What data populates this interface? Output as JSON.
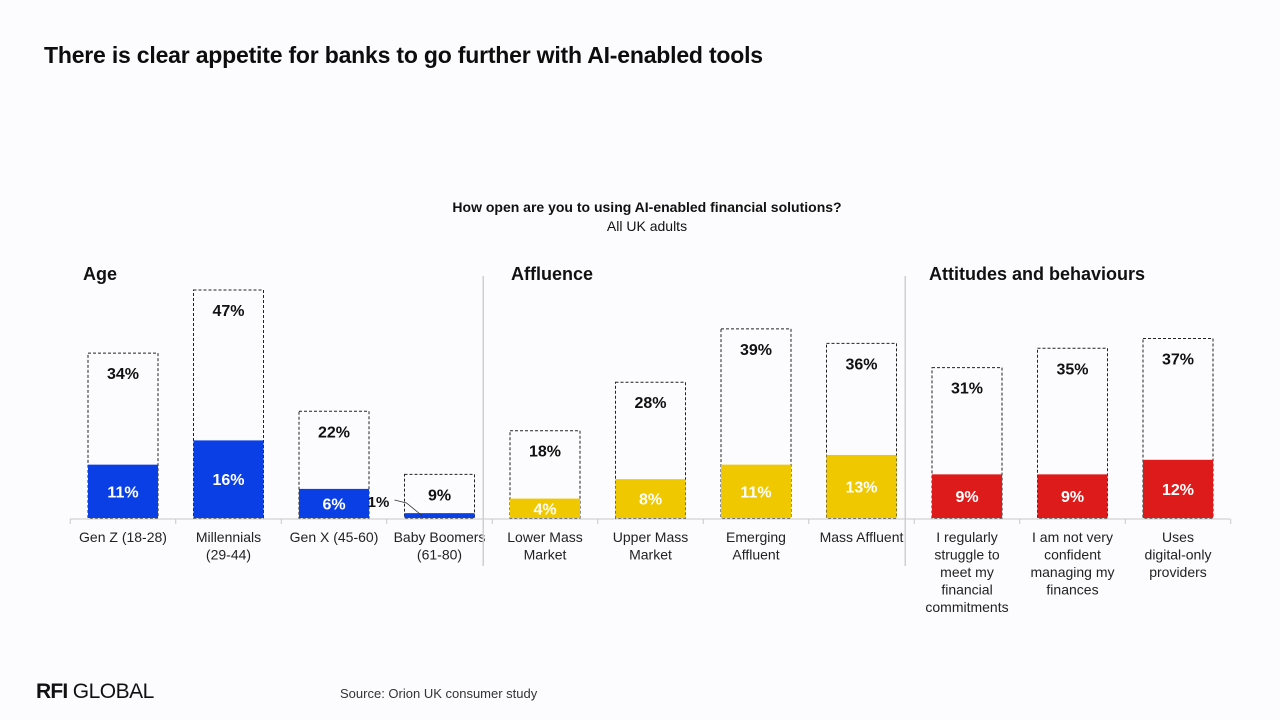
{
  "page": {
    "title": "There is clear appetite for banks to go further with AI-enabled tools",
    "source": "Source: Orion UK consumer study",
    "logo": {
      "strong": "RFI",
      "rest": " GLOBAL"
    }
  },
  "chart_data": {
    "type": "bar",
    "title": "How open are you to using AI-enabled financial solutions?",
    "subtitle": "All UK adults",
    "unit": "%",
    "groups": [
      {
        "name": "Age",
        "color": "#0a3fe6",
        "categories": [
          {
            "label": "Gen Z (18-28)",
            "outer": 34,
            "inner": 11
          },
          {
            "label": "Millennials (29-44)",
            "outer": 47,
            "inner": 16
          },
          {
            "label": "Gen X (45-60)",
            "outer": 22,
            "inner": 6
          },
          {
            "label": "Baby Boomers (61-80)",
            "outer": 9,
            "inner": 1
          }
        ]
      },
      {
        "name": "Affluence",
        "color": "#efc800",
        "categories": [
          {
            "label": "Lower Mass Market",
            "outer": 18,
            "inner": 4
          },
          {
            "label": "Upper Mass Market",
            "outer": 28,
            "inner": 8
          },
          {
            "label": "Emerging Affluent",
            "outer": 39,
            "inner": 11
          },
          {
            "label": "Mass Affluent",
            "outer": 36,
            "inner": 13
          }
        ]
      },
      {
        "name": "Attitudes and behaviours",
        "color": "#de1b1b",
        "categories": [
          {
            "label": "I regularly struggle to meet my financial commitments",
            "outer": 31,
            "inner": 9
          },
          {
            "label": "I am not very confident managing my finances",
            "outer": 35,
            "inner": 9
          },
          {
            "label": "Uses digital-only providers",
            "outer": 37,
            "inner": 12
          }
        ]
      }
    ]
  }
}
